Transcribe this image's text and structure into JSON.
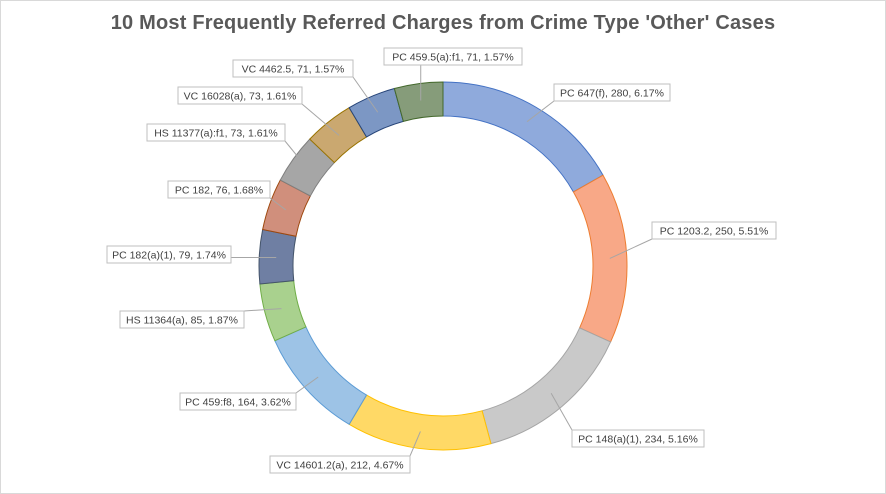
{
  "chart_data": {
    "type": "pie",
    "title": "10 Most Frequently Referred Charges from Crime Type 'Other' Cases",
    "slices": [
      {
        "label": "PC 647(f), 280, 6.17%",
        "category": "PC 647(f)",
        "value": 280,
        "percent": 6.17,
        "color": "#8faadc",
        "stroke": "#4472c4"
      },
      {
        "label": "PC 1203.2, 250, 5.51%",
        "category": "PC 1203.2",
        "value": 250,
        "percent": 5.51,
        "color": "#f8a887",
        "stroke": "#ed7d31"
      },
      {
        "label": "PC 148(a)(1), 234, 5.16%",
        "category": "PC 148(a)(1)",
        "value": 234,
        "percent": 5.16,
        "color": "#c9c9c9",
        "stroke": "#a5a5a5"
      },
      {
        "label": "VC 14601.2(a), 212, 4.67%",
        "category": "VC 14601.2(a)",
        "value": 212,
        "percent": 4.67,
        "color": "#ffd966",
        "stroke": "#ffc000"
      },
      {
        "label": "PC 459:f8, 164, 3.62%",
        "category": "PC 459:f8",
        "value": 164,
        "percent": 3.62,
        "color": "#9dc3e6",
        "stroke": "#5b9bd5"
      },
      {
        "label": "HS 11364(a), 85, 1.87%",
        "category": "HS 11364(a)",
        "value": 85,
        "percent": 1.87,
        "color": "#a9d18e",
        "stroke": "#70ad47"
      },
      {
        "label": "PC 182(a)(1), 79, 1.74%",
        "category": "PC 182(a)(1)",
        "value": 79,
        "percent": 1.74,
        "color": "#6f7fa3",
        "stroke": "#44546a"
      },
      {
        "label": "PC 182, 76, 1.68%",
        "category": "PC 182",
        "value": 76,
        "percent": 1.68,
        "color": "#d08f7c",
        "stroke": "#9e480e"
      },
      {
        "label": "HS 11377(a):f1, 73, 1.61%",
        "category": "HS 11377(a):f1",
        "value": 73,
        "percent": 1.61,
        "color": "#a6a6a6",
        "stroke": "#7f7f7f"
      },
      {
        "label": "VC 16028(a), 73, 1.61%",
        "category": "VC 16028(a)",
        "value": 73,
        "percent": 1.61,
        "color": "#caa870",
        "stroke": "#997300"
      },
      {
        "label": "VC 4462.5, 71, 1.57%",
        "category": "VC 4462.5",
        "value": 71,
        "percent": 1.57,
        "color": "#7c97c4",
        "stroke": "#264478"
      },
      {
        "label": "PC 459.5(a):f1, 71, 1.57%",
        "category": "PC 459.5(a):f1",
        "value": 71,
        "percent": 1.57,
        "color": "#869c7a",
        "stroke": "#43682b"
      }
    ],
    "legend": "none",
    "data_labels": "outside with leader lines"
  }
}
